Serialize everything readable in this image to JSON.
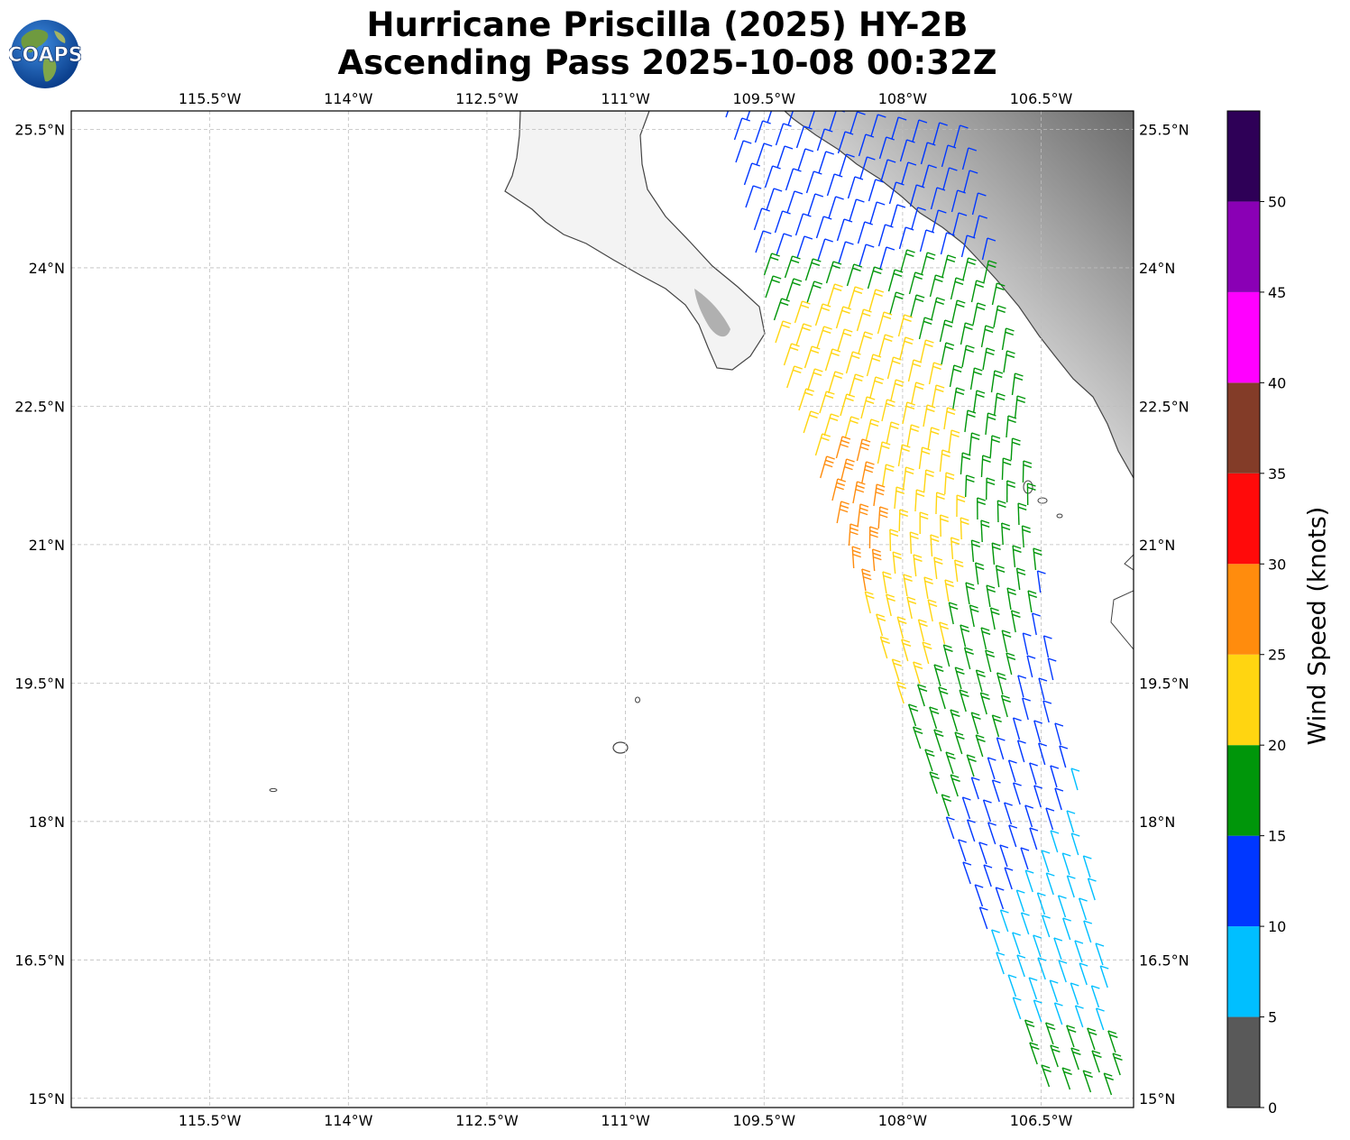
{
  "title_line1": "Hurricane Priscilla (2025) HY-2B",
  "title_line2": "Ascending Pass 2025-10-08 00:32Z",
  "logo_text": "COAPS",
  "map": {
    "lon_range": [
      -117,
      -105.5
    ],
    "lat_range": [
      14.9,
      25.7
    ],
    "lon_ticks": [
      {
        "value": -115.5,
        "label": "115.5°W"
      },
      {
        "value": -114,
        "label": "114°W"
      },
      {
        "value": -112.5,
        "label": "112.5°W"
      },
      {
        "value": -111,
        "label": "111°W"
      },
      {
        "value": -109.5,
        "label": "109.5°W"
      },
      {
        "value": -108,
        "label": "108°W"
      },
      {
        "value": -106.5,
        "label": "106.5°W"
      }
    ],
    "lat_ticks": [
      {
        "value": 25.5,
        "label": "25.5°N"
      },
      {
        "value": 24,
        "label": "24°N"
      },
      {
        "value": 22.5,
        "label": "22.5°N"
      },
      {
        "value": 21,
        "label": "21°N"
      },
      {
        "value": 19.5,
        "label": "19.5°N"
      },
      {
        "value": 18,
        "label": "18°N"
      },
      {
        "value": 16.5,
        "label": "16.5°N"
      },
      {
        "value": 15,
        "label": "15°N"
      }
    ],
    "gridlines": true
  },
  "colorbar": {
    "label": "Wind Speed (knots)",
    "ticks": [
      0,
      5,
      10,
      15,
      20,
      25,
      30,
      35,
      40,
      45,
      50
    ],
    "bins": [
      {
        "min": 0,
        "max": 5,
        "color": "#595959"
      },
      {
        "min": 5,
        "max": 10,
        "color": "#00bfff"
      },
      {
        "min": 10,
        "max": 15,
        "color": "#0037ff"
      },
      {
        "min": 15,
        "max": 20,
        "color": "#00960a"
      },
      {
        "min": 20,
        "max": 25,
        "color": "#ffd511"
      },
      {
        "min": 25,
        "max": 30,
        "color": "#ff8c0d"
      },
      {
        "min": 30,
        "max": 35,
        "color": "#ff0a0a"
      },
      {
        "min": 35,
        "max": 40,
        "color": "#833c28"
      },
      {
        "min": 40,
        "max": 45,
        "color": "#ff00ff"
      },
      {
        "min": 45,
        "max": 50,
        "color": "#8a00b5"
      },
      {
        "min": 50,
        "max": 55,
        "color": "#2e0057"
      }
    ]
  }
}
